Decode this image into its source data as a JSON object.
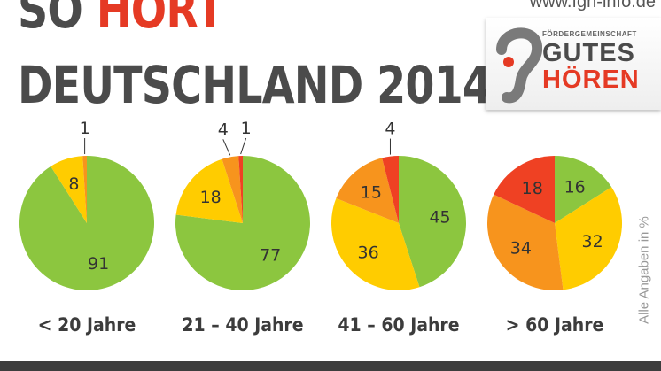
{
  "header": {
    "website": "www.fgh-info.de",
    "title_part1": "SO ",
    "title_highlight": "HÖRT",
    "title_line2": "DEUTSCHLAND 2014:"
  },
  "logo": {
    "small": "FÖRDERGEMEINSCHAFT",
    "line1": "GUTES",
    "line2": "HÖREN",
    "colors": {
      "dark": "#4b4b4b",
      "red": "#e53a24"
    }
  },
  "note": "Alle Angaben in %",
  "chart_data": [
    {
      "type": "pie",
      "title": "< 20 Jahre",
      "values": [
        91,
        8,
        1
      ],
      "colors": [
        "#8cc63f",
        "#ffcc00",
        "#f7941d"
      ]
    },
    {
      "type": "pie",
      "title": "21 – 40 Jahre",
      "values": [
        77,
        18,
        4,
        1
      ],
      "colors": [
        "#8cc63f",
        "#ffcc00",
        "#f7941d",
        "#ef4123"
      ]
    },
    {
      "type": "pie",
      "title": "41 – 60 Jahre",
      "values": [
        45,
        36,
        15,
        4
      ],
      "colors": [
        "#8cc63f",
        "#ffcc00",
        "#f7941d",
        "#ef4123"
      ]
    },
    {
      "type": "pie",
      "title": "> 60 Jahre",
      "values": [
        16,
        32,
        34,
        18
      ],
      "colors": [
        "#8cc63f",
        "#ffcc00",
        "#f7941d",
        "#ef4123"
      ]
    }
  ]
}
